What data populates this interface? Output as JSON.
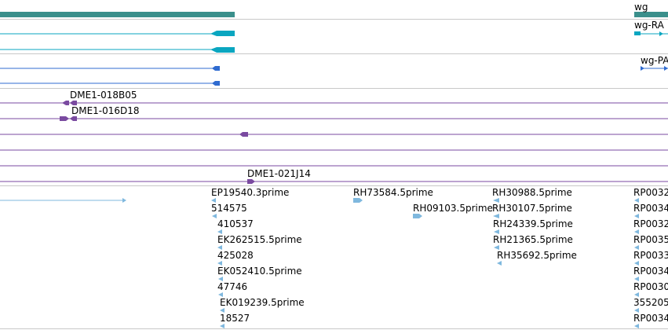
{
  "colors": {
    "gene": "#3a8f8b",
    "transcript": "#0aa6c0",
    "protein": "#2f6bd0",
    "clone": "#7a4aa0",
    "est": "#7fb8de",
    "separator": "#c8c8c8"
  },
  "gene": {
    "label": "wg"
  },
  "transcripts": {
    "label": "wg-RA"
  },
  "proteins": {
    "label": "wg-PA"
  },
  "clones": {
    "labels": [
      "DME1-018B05",
      "DME1-016D18",
      "DME1-021J14"
    ]
  },
  "ests": {
    "labels": [
      "EP19540.3prime",
      "514575",
      "410537",
      "EK262515.5prime",
      "425028",
      "EK052410.5prime",
      "47746",
      "EK019239.5prime",
      "18527",
      "RH73584.5prime",
      "RH09103.5prime",
      "RH30988.5prime",
      "RH30107.5prime",
      "RH24339.5prime",
      "RH21365.5prime",
      "RH35692.5prime",
      "RP0032",
      "RP0034",
      "RP0032",
      "RP0035",
      "RP0033",
      "RP0034",
      "RP0030",
      "355205",
      "RP0034"
    ]
  }
}
